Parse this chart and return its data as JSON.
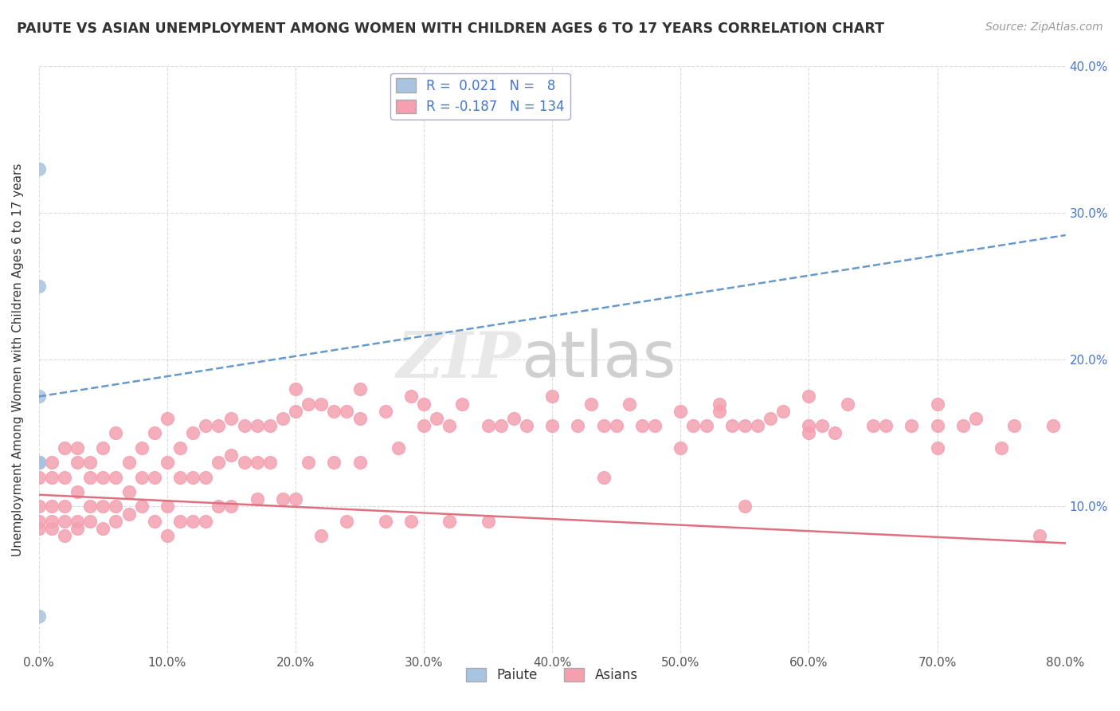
{
  "title": "PAIUTE VS ASIAN UNEMPLOYMENT AMONG WOMEN WITH CHILDREN AGES 6 TO 17 YEARS CORRELATION CHART",
  "source": "Source: ZipAtlas.com",
  "ylabel": "Unemployment Among Women with Children Ages 6 to 17 years",
  "xlim": [
    0.0,
    0.8
  ],
  "ylim": [
    0.0,
    0.4
  ],
  "xticks": [
    0.0,
    0.1,
    0.2,
    0.3,
    0.4,
    0.5,
    0.6,
    0.7,
    0.8
  ],
  "xticklabels": [
    "0.0%",
    "10.0%",
    "20.0%",
    "30.0%",
    "40.0%",
    "50.0%",
    "60.0%",
    "70.0%",
    "80.0%"
  ],
  "yticks": [
    0.0,
    0.1,
    0.2,
    0.3,
    0.4
  ],
  "yticklabels_right": [
    "",
    "10.0%",
    "20.0%",
    "30.0%",
    "40.0%"
  ],
  "paiute_color": "#a8c4e0",
  "asian_color": "#f4a0b0",
  "paiute_line_color": "#6699cc",
  "asian_line_color": "#e07080",
  "legend_text_color": "#4477cc",
  "watermark_text": "ZIP",
  "watermark_text2": "atlas",
  "paiute_R": 0.021,
  "paiute_N": 8,
  "asian_R": -0.187,
  "asian_N": 134,
  "paiute_line_x": [
    0.0,
    0.8
  ],
  "paiute_line_y": [
    0.175,
    0.285
  ],
  "asian_line_x": [
    0.0,
    0.8
  ],
  "asian_line_y": [
    0.108,
    0.075
  ],
  "paiute_points": [
    [
      0.0,
      0.33
    ],
    [
      0.0,
      0.25
    ],
    [
      0.0,
      0.175
    ],
    [
      0.0,
      0.13
    ],
    [
      0.0,
      0.13
    ],
    [
      0.0,
      0.025
    ],
    [
      0.0,
      0.13
    ],
    [
      0.0,
      0.13
    ]
  ],
  "asian_points": [
    [
      0.0,
      0.13
    ],
    [
      0.0,
      0.12
    ],
    [
      0.0,
      0.1
    ],
    [
      0.0,
      0.09
    ],
    [
      0.0,
      0.085
    ],
    [
      0.01,
      0.13
    ],
    [
      0.01,
      0.12
    ],
    [
      0.01,
      0.1
    ],
    [
      0.01,
      0.09
    ],
    [
      0.01,
      0.085
    ],
    [
      0.02,
      0.14
    ],
    [
      0.02,
      0.12
    ],
    [
      0.02,
      0.1
    ],
    [
      0.02,
      0.09
    ],
    [
      0.02,
      0.08
    ],
    [
      0.03,
      0.14
    ],
    [
      0.03,
      0.13
    ],
    [
      0.03,
      0.11
    ],
    [
      0.03,
      0.09
    ],
    [
      0.03,
      0.085
    ],
    [
      0.04,
      0.13
    ],
    [
      0.04,
      0.12
    ],
    [
      0.04,
      0.1
    ],
    [
      0.04,
      0.09
    ],
    [
      0.05,
      0.14
    ],
    [
      0.05,
      0.12
    ],
    [
      0.05,
      0.1
    ],
    [
      0.05,
      0.085
    ],
    [
      0.06,
      0.15
    ],
    [
      0.06,
      0.12
    ],
    [
      0.06,
      0.1
    ],
    [
      0.06,
      0.09
    ],
    [
      0.07,
      0.13
    ],
    [
      0.07,
      0.11
    ],
    [
      0.07,
      0.095
    ],
    [
      0.08,
      0.14
    ],
    [
      0.08,
      0.12
    ],
    [
      0.08,
      0.1
    ],
    [
      0.09,
      0.15
    ],
    [
      0.09,
      0.12
    ],
    [
      0.09,
      0.09
    ],
    [
      0.1,
      0.16
    ],
    [
      0.1,
      0.13
    ],
    [
      0.1,
      0.1
    ],
    [
      0.1,
      0.08
    ],
    [
      0.11,
      0.14
    ],
    [
      0.11,
      0.12
    ],
    [
      0.11,
      0.09
    ],
    [
      0.12,
      0.15
    ],
    [
      0.12,
      0.12
    ],
    [
      0.12,
      0.09
    ],
    [
      0.13,
      0.155
    ],
    [
      0.13,
      0.12
    ],
    [
      0.13,
      0.09
    ],
    [
      0.14,
      0.155
    ],
    [
      0.14,
      0.13
    ],
    [
      0.14,
      0.1
    ],
    [
      0.15,
      0.16
    ],
    [
      0.15,
      0.135
    ],
    [
      0.15,
      0.1
    ],
    [
      0.16,
      0.155
    ],
    [
      0.16,
      0.13
    ],
    [
      0.17,
      0.155
    ],
    [
      0.17,
      0.13
    ],
    [
      0.17,
      0.105
    ],
    [
      0.18,
      0.155
    ],
    [
      0.18,
      0.13
    ],
    [
      0.19,
      0.16
    ],
    [
      0.19,
      0.105
    ],
    [
      0.2,
      0.165
    ],
    [
      0.2,
      0.18
    ],
    [
      0.2,
      0.105
    ],
    [
      0.21,
      0.17
    ],
    [
      0.21,
      0.13
    ],
    [
      0.22,
      0.08
    ],
    [
      0.22,
      0.17
    ],
    [
      0.23,
      0.165
    ],
    [
      0.23,
      0.13
    ],
    [
      0.24,
      0.165
    ],
    [
      0.24,
      0.09
    ],
    [
      0.25,
      0.16
    ],
    [
      0.25,
      0.13
    ],
    [
      0.25,
      0.18
    ],
    [
      0.27,
      0.165
    ],
    [
      0.27,
      0.09
    ],
    [
      0.28,
      0.14
    ],
    [
      0.29,
      0.175
    ],
    [
      0.29,
      0.09
    ],
    [
      0.3,
      0.17
    ],
    [
      0.3,
      0.155
    ],
    [
      0.31,
      0.16
    ],
    [
      0.32,
      0.155
    ],
    [
      0.32,
      0.09
    ],
    [
      0.33,
      0.17
    ],
    [
      0.35,
      0.155
    ],
    [
      0.35,
      0.09
    ],
    [
      0.36,
      0.155
    ],
    [
      0.37,
      0.16
    ],
    [
      0.38,
      0.155
    ],
    [
      0.4,
      0.155
    ],
    [
      0.4,
      0.175
    ],
    [
      0.42,
      0.155
    ],
    [
      0.43,
      0.17
    ],
    [
      0.44,
      0.155
    ],
    [
      0.44,
      0.12
    ],
    [
      0.45,
      0.155
    ],
    [
      0.46,
      0.17
    ],
    [
      0.47,
      0.155
    ],
    [
      0.48,
      0.155
    ],
    [
      0.5,
      0.165
    ],
    [
      0.5,
      0.14
    ],
    [
      0.51,
      0.155
    ],
    [
      0.52,
      0.155
    ],
    [
      0.53,
      0.17
    ],
    [
      0.53,
      0.165
    ],
    [
      0.54,
      0.155
    ],
    [
      0.55,
      0.155
    ],
    [
      0.55,
      0.1
    ],
    [
      0.56,
      0.155
    ],
    [
      0.57,
      0.16
    ],
    [
      0.58,
      0.165
    ],
    [
      0.6,
      0.155
    ],
    [
      0.6,
      0.175
    ],
    [
      0.6,
      0.15
    ],
    [
      0.61,
      0.155
    ],
    [
      0.62,
      0.15
    ],
    [
      0.63,
      0.17
    ],
    [
      0.65,
      0.155
    ],
    [
      0.66,
      0.155
    ],
    [
      0.68,
      0.155
    ],
    [
      0.7,
      0.155
    ],
    [
      0.7,
      0.17
    ],
    [
      0.7,
      0.14
    ],
    [
      0.72,
      0.155
    ],
    [
      0.73,
      0.16
    ],
    [
      0.75,
      0.14
    ],
    [
      0.76,
      0.155
    ],
    [
      0.78,
      0.08
    ],
    [
      0.79,
      0.155
    ]
  ]
}
